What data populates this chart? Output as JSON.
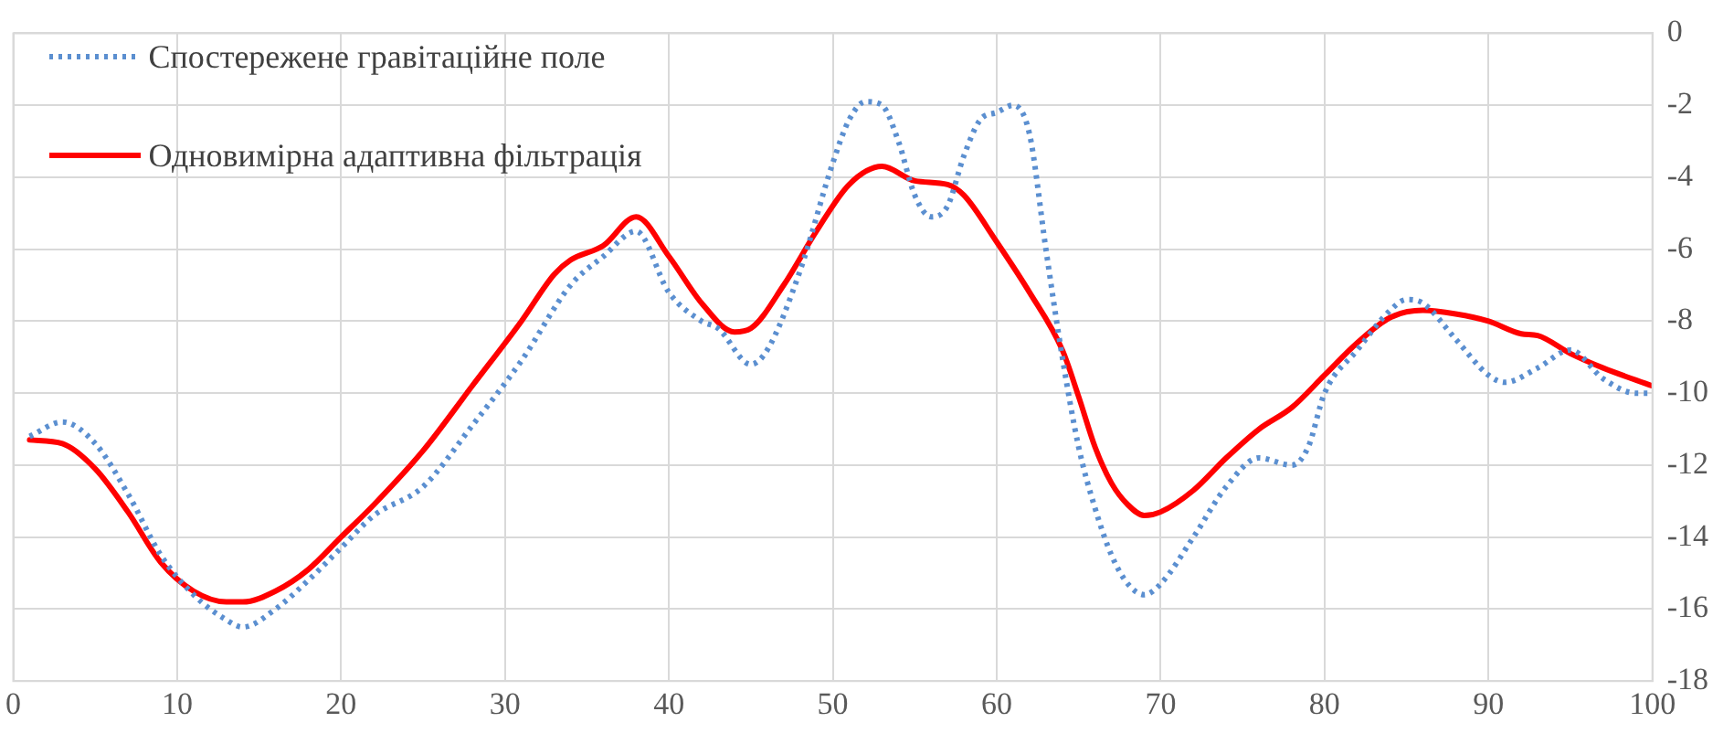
{
  "chart_data": {
    "type": "line",
    "xlim": [
      0,
      100
    ],
    "xticks": [
      0,
      10,
      20,
      30,
      40,
      50,
      60,
      70,
      80,
      90,
      100
    ],
    "ylim": [
      -18,
      0
    ],
    "yticks": [
      -18,
      -16,
      -14,
      -12,
      -10,
      -8,
      -6,
      -4,
      -2,
      0
    ],
    "grid": true,
    "legend": "top left",
    "marker": "none",
    "series": [
      {
        "name": "Спостережене гравітаційне поле",
        "color": "#5b8fd0",
        "line_style": "dotted",
        "x": [
          1,
          3,
          5,
          7,
          9,
          11,
          13,
          14,
          16,
          18,
          20,
          22,
          25,
          28,
          31,
          34,
          36,
          38,
          40,
          42,
          43,
          45,
          46,
          48,
          50,
          51,
          52,
          53,
          54,
          55,
          56,
          57,
          58,
          59,
          60,
          61,
          62,
          63,
          64,
          65,
          66,
          67,
          68,
          69,
          70,
          72,
          74,
          76,
          78,
          79,
          80,
          82,
          84,
          85,
          86,
          88,
          90,
          91,
          93,
          95,
          97,
          99,
          100
        ],
        "values": [
          -11.2,
          -10.8,
          -11.4,
          -12.8,
          -14.5,
          -15.6,
          -16.3,
          -16.5,
          -16.0,
          -15.2,
          -14.3,
          -13.4,
          -12.6,
          -10.9,
          -9.1,
          -7.0,
          -6.2,
          -5.5,
          -7.2,
          -8.0,
          -8.2,
          -9.2,
          -8.8,
          -6.6,
          -3.6,
          -2.4,
          -1.9,
          -2.0,
          -3.0,
          -4.5,
          -5.1,
          -4.8,
          -3.4,
          -2.4,
          -2.2,
          -2.0,
          -2.8,
          -6.0,
          -9.0,
          -11.5,
          -13.2,
          -14.5,
          -15.3,
          -15.6,
          -15.3,
          -14.0,
          -12.6,
          -11.8,
          -12.0,
          -11.5,
          -10.0,
          -8.8,
          -7.7,
          -7.4,
          -7.5,
          -8.5,
          -9.5,
          -9.7,
          -9.3,
          -8.8,
          -9.6,
          -10.0,
          -10.0
        ]
      },
      {
        "name": "Одновимірна адаптивна фільтрація",
        "color": "#ff0000",
        "line_style": "solid",
        "x": [
          1,
          3,
          5,
          7,
          9,
          11,
          13,
          14,
          16,
          18,
          20,
          22,
          25,
          28,
          31,
          33,
          34,
          36,
          38,
          40,
          42,
          44,
          45,
          47,
          49,
          51,
          53,
          55,
          57,
          58,
          60,
          62,
          64,
          65,
          66,
          67,
          68,
          69,
          70,
          72,
          74,
          76,
          78,
          80,
          82,
          84,
          86,
          88,
          90,
          92,
          93,
          95,
          97,
          100
        ],
        "values": [
          -11.3,
          -11.4,
          -12.1,
          -13.3,
          -14.7,
          -15.5,
          -15.8,
          -15.8,
          -15.5,
          -14.9,
          -14.0,
          -13.1,
          -11.6,
          -9.8,
          -8.0,
          -6.7,
          -6.3,
          -5.9,
          -5.1,
          -6.2,
          -7.5,
          -8.3,
          -8.2,
          -7.0,
          -5.5,
          -4.2,
          -3.7,
          -4.1,
          -4.2,
          -4.5,
          -5.8,
          -7.2,
          -8.8,
          -10.1,
          -11.5,
          -12.5,
          -13.1,
          -13.4,
          -13.3,
          -12.7,
          -11.8,
          -11.0,
          -10.4,
          -9.5,
          -8.6,
          -7.9,
          -7.7,
          -7.8,
          -8.0,
          -8.35,
          -8.4,
          -8.9,
          -9.3,
          -9.8
        ]
      }
    ]
  }
}
